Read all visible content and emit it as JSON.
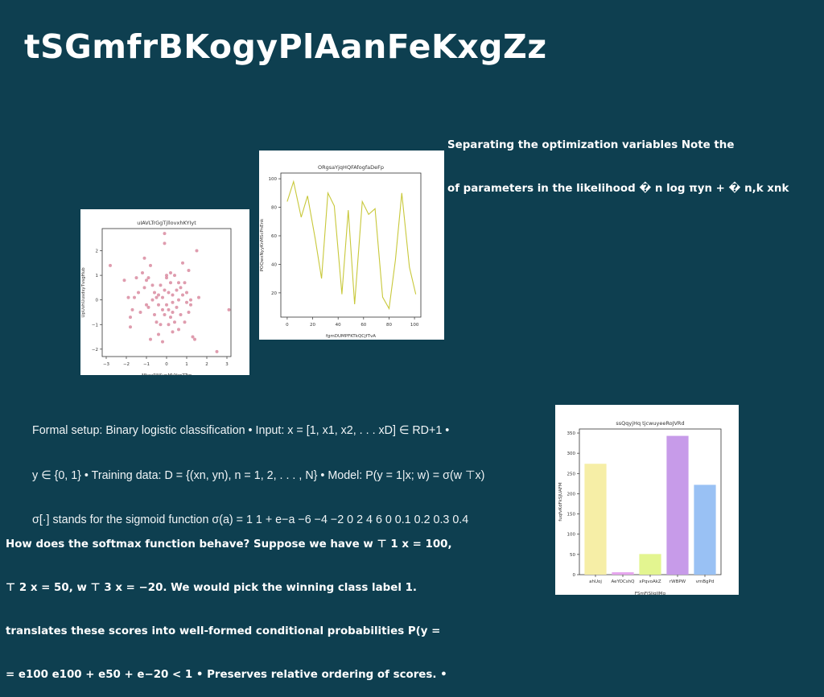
{
  "slide": {
    "title": "tSGmfrBKogyPlAanFeKxgZz",
    "note_top_right": {
      "lines": [
        "Separating the optimization variables Note the",
        "of parameters in the likelihood � n log πyn + � n,k xnk"
      ]
    },
    "formal_setup": {
      "lines": [
        "Formal setup: Binary logistic classification • Input: x = [1, x1, x2, . . . xD] ∈ RD+1 •",
        "y ∈ {0, 1} • Training data: D = {(xn, yn), n = 1, 2, . . . , N} • Model: P(y = 1|x; w) = σ(w ⊤x)",
        "σ[·] stands for the sigmoid function σ(a) = 1 1 + e−a −6 −4 −2 0 2 4 6 0 0.1 0.2 0.3 0.4"
      ]
    },
    "softmax_note": {
      "lines": [
        "How does the softmax function behave? Suppose we have w ⊤ 1 x = 100,",
        "⊤ 2 x = 50, w ⊤ 3 x = −20. We would pick the winning class label 1.",
        "translates these scores into well-formed conditional probabilities P(y =",
        "= e100 e100 + e50 + e−20 < 1 • Preserves relative ordering of scores. •"
      ]
    }
  },
  "chart_data": [
    {
      "type": "scatter",
      "title": "uIAVLTrGgTjllovxhKYIyt",
      "xlabel": "MkcxRNSynMVYrgZTrg",
      "ylabel": "UpUvhUusdsyTvsgHub",
      "xlim": [
        -3.2,
        3.2
      ],
      "ylim": [
        -2.3,
        2.9
      ],
      "xticks": [
        -3,
        -2,
        -1,
        0,
        1,
        2,
        3
      ],
      "yticks": [
        -2,
        -1,
        0,
        1,
        2
      ],
      "color": "#d98ba0",
      "grid": false,
      "points": [
        [
          -2.8,
          1.4
        ],
        [
          -2.1,
          0.8
        ],
        [
          -1.9,
          0.1
        ],
        [
          -1.8,
          -1.1
        ],
        [
          -1.8,
          -0.7
        ],
        [
          -1.7,
          -0.4
        ],
        [
          -1.6,
          0.1
        ],
        [
          -1.5,
          0.9
        ],
        [
          -1.4,
          0.3
        ],
        [
          -1.3,
          -0.5
        ],
        [
          -1.2,
          1.1
        ],
        [
          -1.1,
          1.7
        ],
        [
          -1.1,
          0.5
        ],
        [
          -1.0,
          -0.2
        ],
        [
          -1.0,
          0.8
        ],
        [
          -0.9,
          0.9
        ],
        [
          -0.9,
          -0.3
        ],
        [
          -0.8,
          -1.6
        ],
        [
          -0.8,
          1.4
        ],
        [
          -0.7,
          0.0
        ],
        [
          -0.7,
          0.6
        ],
        [
          -0.6,
          -0.6
        ],
        [
          -0.6,
          0.3
        ],
        [
          -0.5,
          -0.9
        ],
        [
          -0.5,
          0.1
        ],
        [
          -0.4,
          -1.4
        ],
        [
          -0.4,
          -0.2
        ],
        [
          -0.4,
          0.2
        ],
        [
          -0.3,
          0.6
        ],
        [
          -0.3,
          -1.0
        ],
        [
          -0.2,
          0.1
        ],
        [
          -0.2,
          -0.4
        ],
        [
          -0.1,
          2.3
        ],
        [
          -0.1,
          0.4
        ],
        [
          -0.1,
          -0.6
        ],
        [
          -0.1,
          2.7
        ],
        [
          0.0,
          1.0
        ],
        [
          0.0,
          -0.2
        ],
        [
          0.0,
          0.9
        ],
        [
          0.1,
          -1.0
        ],
        [
          0.1,
          -0.4
        ],
        [
          0.1,
          0.3
        ],
        [
          0.2,
          0.7
        ],
        [
          0.2,
          -0.7
        ],
        [
          0.2,
          1.1
        ],
        [
          0.3,
          -0.1
        ],
        [
          0.3,
          0.2
        ],
        [
          0.3,
          -0.5
        ],
        [
          0.4,
          -0.9
        ],
        [
          0.4,
          1.0
        ],
        [
          0.5,
          0.4
        ],
        [
          0.5,
          -0.3
        ],
        [
          0.6,
          0.0
        ],
        [
          0.6,
          0.7
        ],
        [
          0.6,
          -1.2
        ],
        [
          0.7,
          0.5
        ],
        [
          0.7,
          -0.6
        ],
        [
          0.8,
          1.5
        ],
        [
          0.8,
          0.2
        ],
        [
          0.9,
          -0.9
        ],
        [
          1.0,
          0.3
        ],
        [
          1.0,
          -0.1
        ],
        [
          1.1,
          1.2
        ],
        [
          1.1,
          -0.5
        ],
        [
          1.2,
          0.0
        ],
        [
          1.2,
          -0.2
        ],
        [
          1.3,
          -1.5
        ],
        [
          1.4,
          -1.6
        ],
        [
          1.5,
          2.0
        ],
        [
          1.6,
          0.1
        ],
        [
          2.5,
          -2.1
        ],
        [
          3.1,
          -0.4
        ],
        [
          -0.2,
          -1.7
        ],
        [
          0.3,
          -1.3
        ],
        [
          0.9,
          0.7
        ]
      ]
    },
    {
      "type": "line",
      "title": "ORgsaYjqHQFAfogfaDeFp",
      "xlabel": "fgmDUMPFKTkQCjfTvA",
      "ylabel": "POQwxNyyKnMScPnEnk",
      "xlim": [
        -5,
        105
      ],
      "ylim": [
        3,
        104
      ],
      "xticks": [
        0,
        20,
        40,
        60,
        80,
        100
      ],
      "yticks": [
        20,
        40,
        60,
        80,
        100
      ],
      "color": "#c8c83a",
      "grid": false,
      "x": [
        0,
        5,
        11,
        16,
        22,
        27,
        32,
        37,
        43,
        48,
        53,
        59,
        64,
        69,
        75,
        80,
        85,
        90,
        96,
        101
      ],
      "y": [
        84,
        98,
        73,
        88,
        58,
        30,
        90,
        81,
        19,
        78,
        12,
        84,
        75,
        79,
        17,
        9,
        43,
        90,
        38,
        19
      ]
    },
    {
      "type": "bar",
      "title": "ssQqyjHq tjcwuyeeRoJVRd",
      "xlabel": "FSmFjSJiqlIMq",
      "ylabel": "fuqfvKdFkSJUAFM",
      "ylim": [
        0,
        360
      ],
      "yticks": [
        0,
        50,
        100,
        150,
        200,
        250,
        300,
        350
      ],
      "grid": false,
      "categories": [
        "ahUoj",
        "AeYOCshQ",
        "xPqvoAkZ",
        "rWBPW",
        "vmBgPd"
      ],
      "values": [
        274,
        6,
        51,
        343,
        222
      ],
      "colors": [
        "#f6eea6",
        "#e6a6ee",
        "#e3f590",
        "#c79be9",
        "#99c1f4"
      ]
    }
  ]
}
